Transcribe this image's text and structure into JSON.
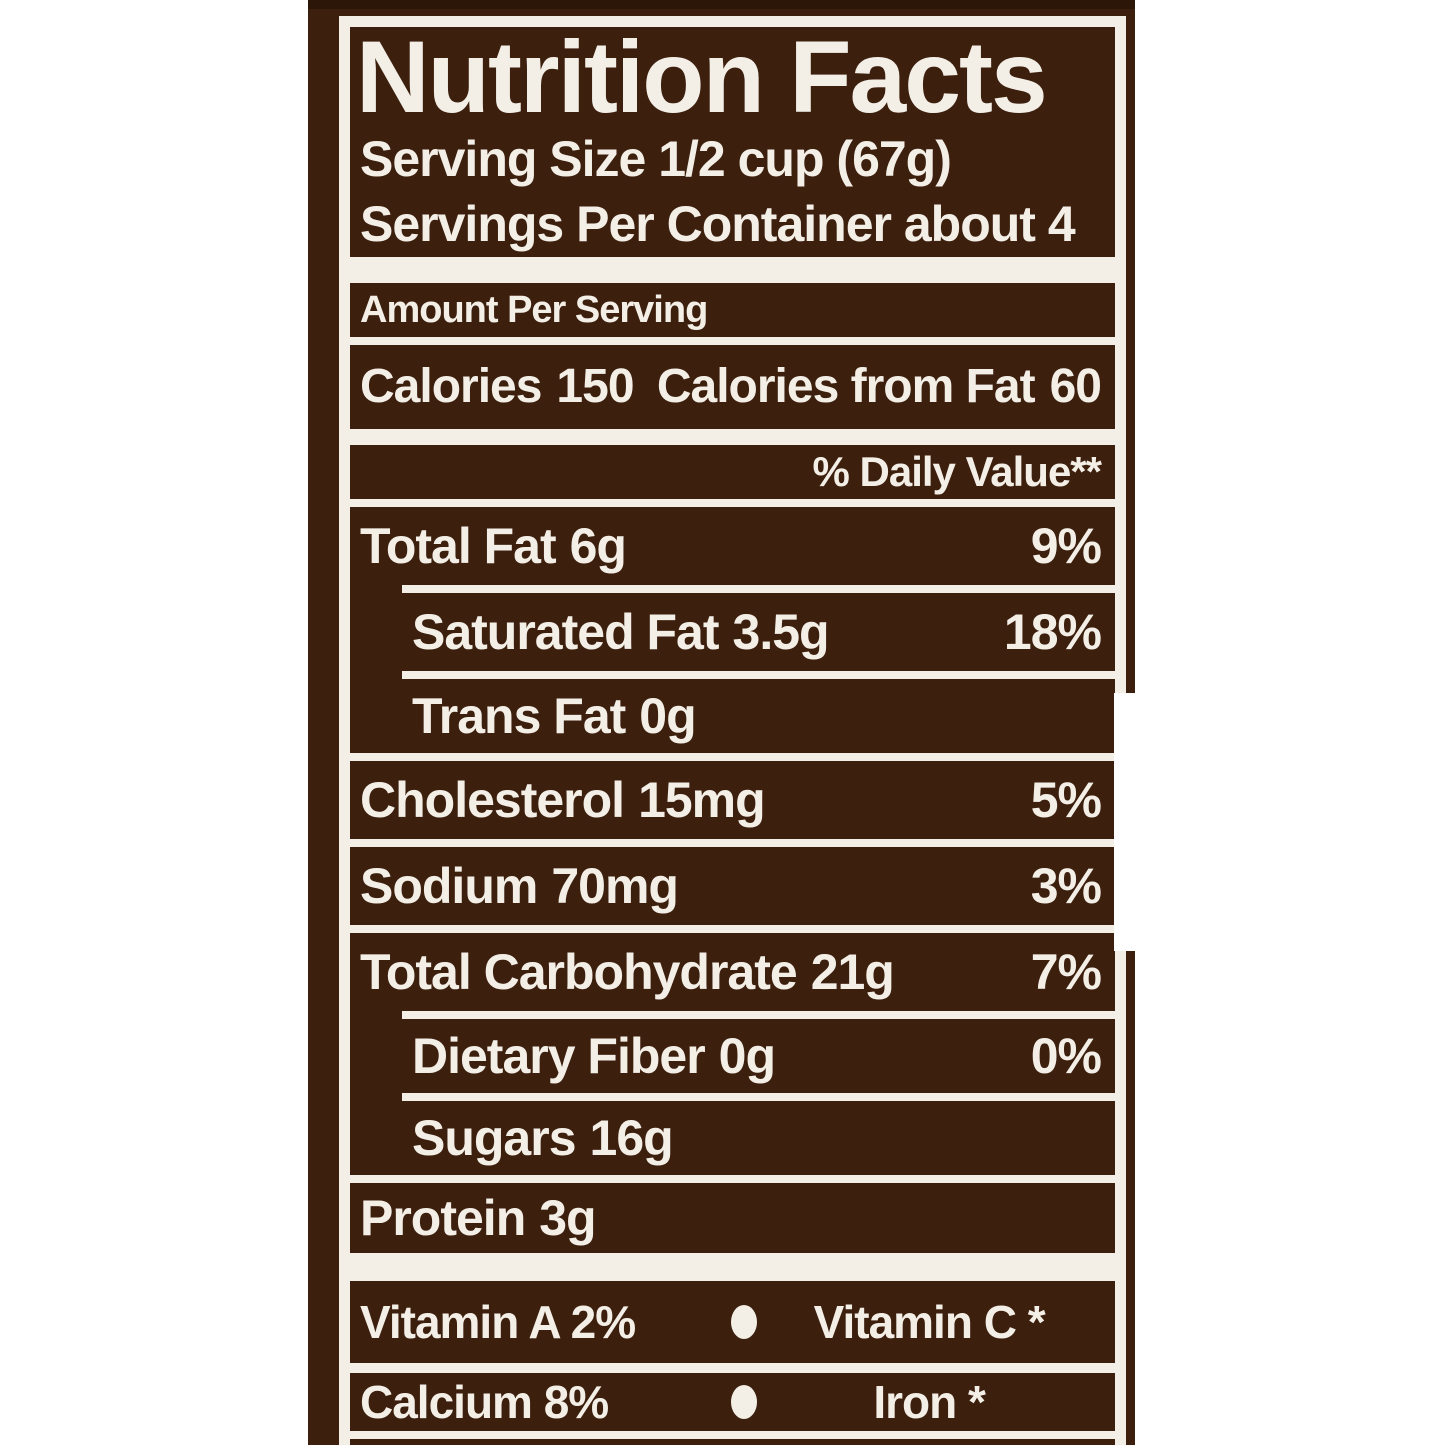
{
  "colors": {
    "label_background": "#3D1F0E",
    "text_and_rules": "#F3EFE7",
    "top_edge_shade": "#2B1608",
    "page_background": "#FFFFFF"
  },
  "label": {
    "title": "Nutrition Facts",
    "serving_size": "Serving Size 1/2 cup (67g)",
    "servings_per_container": "Servings Per Container about 4",
    "amount_per_serving": "Amount Per Serving",
    "calories": {
      "label": "Calories",
      "value": "150",
      "from_fat_label": "Calories from Fat",
      "from_fat_value": "60"
    },
    "daily_value_header": "% Daily Value**",
    "nutrients": [
      {
        "name": "Total Fat",
        "amount": "6g",
        "daily_value": "9%"
      },
      {
        "name": "Saturated Fat",
        "amount": "3.5g",
        "daily_value": "18%"
      },
      {
        "name": "Trans Fat",
        "amount": "0g",
        "daily_value": ""
      },
      {
        "name": "Cholesterol",
        "amount": "15mg",
        "daily_value": "5%"
      },
      {
        "name": "Sodium",
        "amount": "70mg",
        "daily_value": "3%"
      },
      {
        "name": "Total Carbohydrate",
        "amount": "21g",
        "daily_value": "7%"
      },
      {
        "name": "Dietary Fiber",
        "amount": "0g",
        "daily_value": "0%"
      },
      {
        "name": "Sugars",
        "amount": "16g",
        "daily_value": ""
      },
      {
        "name": "Protein",
        "amount": "3g",
        "daily_value": ""
      }
    ],
    "micronutrients": [
      {
        "left": "Vitamin A 2%",
        "right": "Vitamin C *"
      },
      {
        "left": "Calcium 8%",
        "right": "Iron *"
      }
    ],
    "icons": {
      "vitamin_separator": "oval-bullet"
    }
  }
}
